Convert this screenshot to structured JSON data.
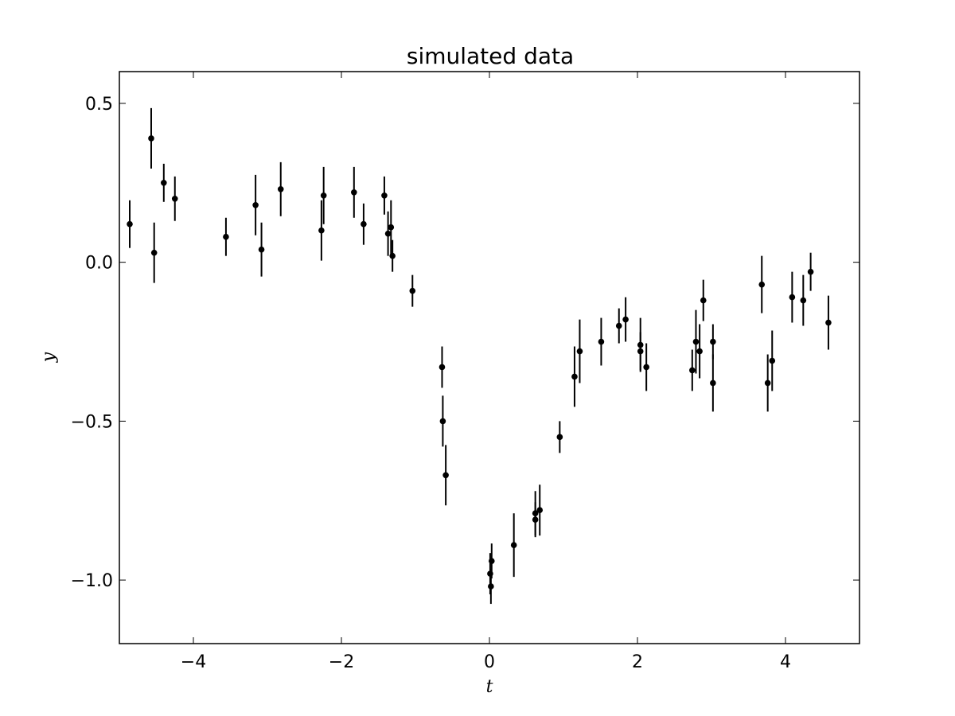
{
  "chart_data": {
    "type": "scatter",
    "title": "simulated data",
    "xlabel": "t",
    "ylabel": "y",
    "xlim": [
      -5,
      5
    ],
    "ylim": [
      -1.2,
      0.6
    ],
    "xticks": [
      -4,
      -2,
      0,
      2,
      4
    ],
    "xtick_labels": [
      "−4",
      "−2",
      "0",
      "2",
      "4"
    ],
    "yticks": [
      0.5,
      0.0,
      -0.5,
      -1.0
    ],
    "ytick_labels": [
      "0.5",
      "0.0",
      "−0.5",
      "−1.0"
    ],
    "grid": false,
    "marker_color": "#000000",
    "series": [
      {
        "name": "simulated data",
        "points": [
          {
            "x": -4.86,
            "y": 0.12,
            "err": 0.075
          },
          {
            "x": -4.57,
            "y": 0.39,
            "err": 0.095
          },
          {
            "x": -4.53,
            "y": 0.03,
            "err": 0.095
          },
          {
            "x": -4.4,
            "y": 0.25,
            "err": 0.06
          },
          {
            "x": -4.25,
            "y": 0.2,
            "err": 0.07
          },
          {
            "x": -3.56,
            "y": 0.08,
            "err": 0.06
          },
          {
            "x": -3.16,
            "y": 0.18,
            "err": 0.095
          },
          {
            "x": -3.08,
            "y": 0.04,
            "err": 0.085
          },
          {
            "x": -2.82,
            "y": 0.23,
            "err": 0.085
          },
          {
            "x": -2.27,
            "y": 0.1,
            "err": 0.095
          },
          {
            "x": -2.24,
            "y": 0.21,
            "err": 0.09
          },
          {
            "x": -1.83,
            "y": 0.22,
            "err": 0.08
          },
          {
            "x": -1.7,
            "y": 0.12,
            "err": 0.065
          },
          {
            "x": -1.42,
            "y": 0.21,
            "err": 0.06
          },
          {
            "x": -1.37,
            "y": 0.09,
            "err": 0.07
          },
          {
            "x": -1.33,
            "y": 0.11,
            "err": 0.085
          },
          {
            "x": -1.31,
            "y": 0.02,
            "err": 0.05
          },
          {
            "x": -1.04,
            "y": -0.09,
            "err": 0.05
          },
          {
            "x": -0.64,
            "y": -0.33,
            "err": 0.065
          },
          {
            "x": -0.63,
            "y": -0.5,
            "err": 0.08
          },
          {
            "x": -0.59,
            "y": -0.67,
            "err": 0.095
          },
          {
            "x": 0.01,
            "y": -0.98,
            "err": 0.065
          },
          {
            "x": 0.02,
            "y": -1.02,
            "err": 0.055
          },
          {
            "x": 0.03,
            "y": -0.94,
            "err": 0.055
          },
          {
            "x": 0.33,
            "y": -0.89,
            "err": 0.1
          },
          {
            "x": 0.62,
            "y": -0.79,
            "err": 0.07
          },
          {
            "x": 0.62,
            "y": -0.81,
            "err": 0.055
          },
          {
            "x": 0.68,
            "y": -0.78,
            "err": 0.08
          },
          {
            "x": 0.95,
            "y": -0.55,
            "err": 0.05
          },
          {
            "x": 1.15,
            "y": -0.36,
            "err": 0.095
          },
          {
            "x": 1.22,
            "y": -0.28,
            "err": 0.1
          },
          {
            "x": 1.51,
            "y": -0.25,
            "err": 0.075
          },
          {
            "x": 1.75,
            "y": -0.2,
            "err": 0.055
          },
          {
            "x": 1.84,
            "y": -0.18,
            "err": 0.07
          },
          {
            "x": 2.04,
            "y": -0.26,
            "err": 0.085
          },
          {
            "x": 2.04,
            "y": -0.28,
            "err": 0.06
          },
          {
            "x": 2.12,
            "y": -0.33,
            "err": 0.075
          },
          {
            "x": 2.74,
            "y": -0.34,
            "err": 0.065
          },
          {
            "x": 2.79,
            "y": -0.25,
            "err": 0.1
          },
          {
            "x": 2.84,
            "y": -0.28,
            "err": 0.085
          },
          {
            "x": 2.89,
            "y": -0.12,
            "err": 0.065
          },
          {
            "x": 3.02,
            "y": -0.38,
            "err": 0.09
          },
          {
            "x": 3.02,
            "y": -0.25,
            "err": 0.055
          },
          {
            "x": 3.68,
            "y": -0.07,
            "err": 0.09
          },
          {
            "x": 3.76,
            "y": -0.38,
            "err": 0.09
          },
          {
            "x": 3.82,
            "y": -0.31,
            "err": 0.095
          },
          {
            "x": 4.09,
            "y": -0.11,
            "err": 0.08
          },
          {
            "x": 4.24,
            "y": -0.12,
            "err": 0.08
          },
          {
            "x": 4.34,
            "y": -0.03,
            "err": 0.06
          },
          {
            "x": 4.58,
            "y": -0.19,
            "err": 0.085
          }
        ]
      }
    ]
  }
}
